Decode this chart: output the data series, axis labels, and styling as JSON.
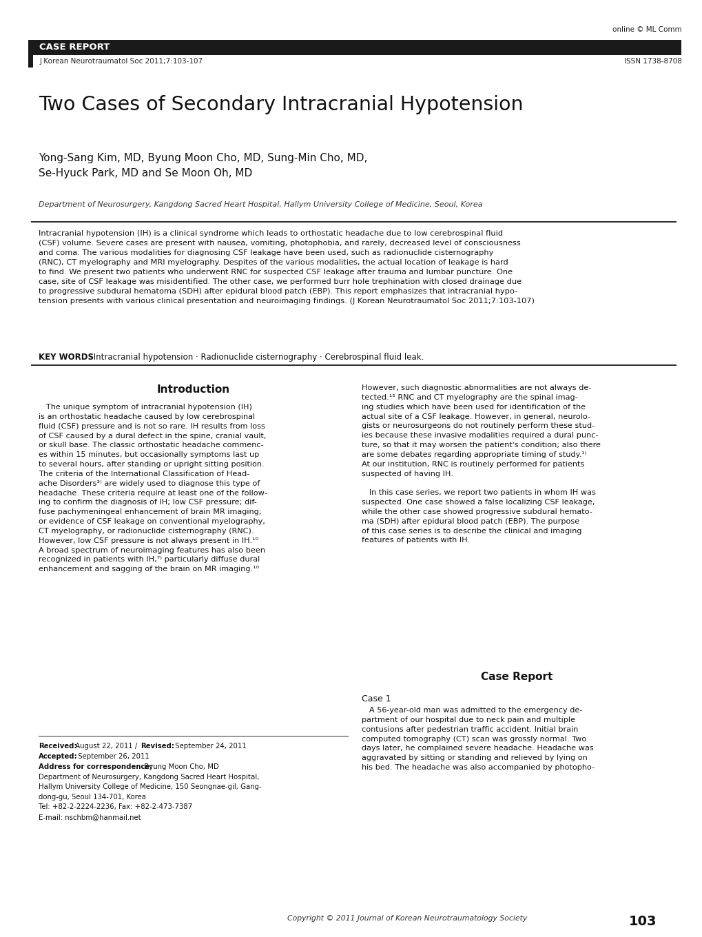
{
  "page_width": 10.2,
  "page_height": 13.6,
  "bg_color": "#ffffff",
  "header": {
    "online_text": "online © ML Comm",
    "case_report_label": "CASE REPORT",
    "journal_ref": "J Korean Neurotraumatol Soc 2011;7:103-107",
    "issn": "ISSN 1738-8708",
    "bar_color": "#1a1a1a"
  },
  "title": "Two Cases of Secondary Intracranial Hypotension",
  "authors": "Yong-Sang Kim, MD, Byung Moon Cho, MD, Sung-Min Cho, MD,\nSe-Hyuck Park, MD and Se Moon Oh, MD",
  "affiliation": "Department of Neurosurgery, Kangdong Sacred Heart Hospital, Hallym University College of Medicine, Seoul, Korea",
  "abstract_text": "Intracranial hypotension (IH) is a clinical syndrome which leads to orthostatic headache due to low cerebrospinal fluid\n(CSF) volume. Severe cases are present with nausea, vomiting, photophobia, and rarely, decreased level of consciousness\nand coma. The various modalities for diagnosing CSF leakage have been used, such as radionuclide cisternography\n(RNC), CT myelography and MRI myelography. Despites of the various modalities, the actual location of leakage is hard\nto find. We present two patients who underwent RNC for suspected CSF leakage after trauma and lumbar puncture. One\ncase, site of CSF leakage was misidentified. The other case, we performed burr hole trephination with closed drainage due\nto progressive subdural hematoma (SDH) after epidural blood patch (EBP). This report emphasizes that intracranial hypo-\ntension presents with various clinical presentation and neuroimaging findings. (J Korean Neurotraumatol Soc 2011;7:103-107)",
  "keywords_bold": "KEY WORDS",
  "keywords_text": ": Intracranial hypotension · Radionuclide cisternography · Cerebrospinal fluid leak.",
  "intro_heading": "Introduction",
  "intro_left": "   The unique symptom of intracranial hypotension (IH)\nis an orthostatic headache caused by low cerebrospinal\nfluid (CSF) pressure and is not so rare. IH results from loss\nof CSF caused by a dural defect in the spine, cranial vault,\nor skull base. The classic orthostatic headache commenc-\nes within 15 minutes, but occasionally symptoms last up\nto several hours, after standing or upright sitting position.\nThe criteria of the International Classification of Head-\nache Disorders³⁾ are widely used to diagnose this type of\nheadache. These criteria require at least one of the follow-\ning to confirm the diagnosis of IH; low CSF pressure; dif-\nfuse pachymeningeal enhancement of brain MR imaging;\nor evidence of CSF leakage on conventional myelography,\nCT myelography, or radionuclide cisternography (RNC).\nHowever, low CSF pressure is not always present in IH.¹⁰\nA broad spectrum of neuroimaging features has also been\nrecognized in patients with IH,⁷⁾ particularly diffuse dural\nenhancement and sagging of the brain on MR imaging.¹⁰",
  "intro_right": "However, such diagnostic abnormalities are not always de-\ntected.¹⁵ RNC and CT myelography are the spinal imag-\ning studies which have been used for identification of the\nactual site of a CSF leakage. However, in general, neurolo-\ngists or neurosurgeons do not routinely perform these stud-\nies because these invasive modalities required a dural punc-\nture, so that it may worsen the patient's condition; also there\nare some debates regarding appropriate timing of study.¹⁾\nAt our institution, RNC is routinely performed for patients\nsuspected of having IH.\n\n   In this case series, we report two patients in whom IH was\nsuspected. One case showed a false localizing CSF leakage,\nwhile the other case showed progressive subdural hemato-\nma (SDH) after epidural blood patch (EBP). The purpose\nof this case series is to describe the clinical and imaging\nfeatures of patients with IH.",
  "case_report_heading": "Case Report",
  "case1_heading": "Case 1",
  "case1_text": "   A 56-year-old man was admitted to the emergency de-\npartment of our hospital due to neck pain and multiple\ncontusions after pedestrian traffic accident. Initial brain\ncomputed tomography (CT) scan was grossly normal. Two\ndays later, he complained severe headache. Headache was\naggravated by sitting or standing and relieved by lying on\nhis bed. The headache was also accompanied by photopho-",
  "received_label": "Received:",
  "received_date": " August 22, 2011 / ",
  "revised_label": "Revised:",
  "revised_date": " September 24, 2011",
  "accepted_label": "Accepted:",
  "accepted_date": " September 26, 2011",
  "address_label": "Address for correspondence:",
  "address_name": " Byung Moon Cho, MD",
  "address_detail": "Department of Neurosurgery, Kangdong Sacred Heart Hospital,\nHallym University College of Medicine, 150 Seongnae-gil, Gang-\ndong-gu, Seoul 134-701, Korea\nTel: +82-2-2224-2236, Fax: +82-2-473-7387\nE-mail: nschbm@hanmail.net",
  "copyright": "Copyright © 2011 Journal of Korean Neurotraumatology Society",
  "page_num": "103"
}
